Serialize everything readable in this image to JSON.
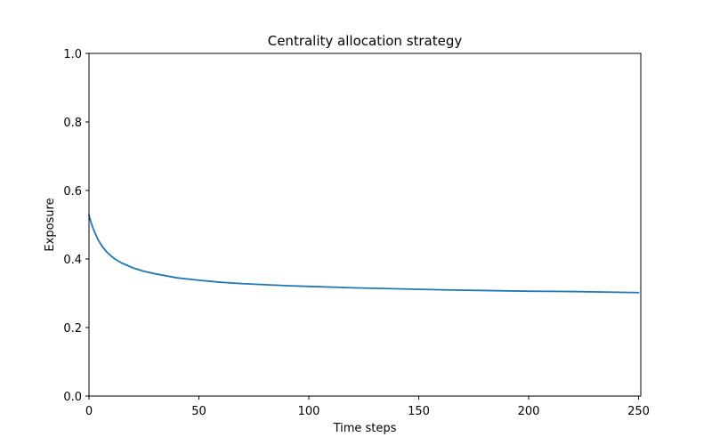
{
  "chart_data": {
    "type": "line",
    "title": "Centrality allocation strategy",
    "xlabel": "Time steps",
    "ylabel": "Exposure",
    "xlim": [
      0,
      251
    ],
    "ylim": [
      0.0,
      1.0
    ],
    "x_ticks": [
      0,
      50,
      100,
      150,
      200,
      250
    ],
    "y_ticks": [
      0.0,
      0.2,
      0.4,
      0.6,
      0.8,
      1.0
    ],
    "x_tick_labels": [
      "0",
      "50",
      "100",
      "150",
      "200",
      "250"
    ],
    "y_tick_labels": [
      "0.0",
      "0.2",
      "0.4",
      "0.6",
      "0.8",
      "1.0"
    ],
    "grid": false,
    "series": [
      {
        "color": "#1f77b4",
        "x": [
          0,
          1,
          2,
          3,
          4,
          5,
          6,
          8,
          10,
          12,
          15,
          20,
          25,
          30,
          40,
          50,
          60,
          70,
          80,
          90,
          100,
          120,
          140,
          160,
          180,
          200,
          220,
          240,
          250
        ],
        "y": [
          0.528,
          0.505,
          0.487,
          0.472,
          0.458,
          0.447,
          0.437,
          0.421,
          0.409,
          0.399,
          0.388,
          0.374,
          0.364,
          0.357,
          0.345,
          0.338,
          0.332,
          0.328,
          0.325,
          0.322,
          0.32,
          0.316,
          0.313,
          0.31,
          0.308,
          0.306,
          0.305,
          0.303,
          0.302
        ]
      }
    ]
  }
}
